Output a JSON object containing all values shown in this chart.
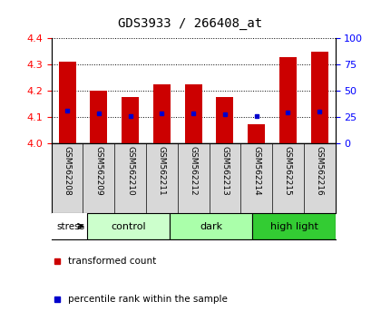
{
  "title": "GDS3933 / 266408_at",
  "samples": [
    "GSM562208",
    "GSM562209",
    "GSM562210",
    "GSM562211",
    "GSM562212",
    "GSM562213",
    "GSM562214",
    "GSM562215",
    "GSM562216"
  ],
  "bar_tops": [
    4.31,
    4.2,
    4.175,
    4.225,
    4.225,
    4.175,
    4.07,
    4.33,
    4.35
  ],
  "bar_bottom": 4.0,
  "blue_dots": [
    4.125,
    4.113,
    4.103,
    4.113,
    4.113,
    4.108,
    4.102,
    4.115,
    4.12
  ],
  "ylim": [
    4.0,
    4.4
  ],
  "ylim_right": [
    0,
    100
  ],
  "yticks_left": [
    4.0,
    4.1,
    4.2,
    4.3,
    4.4
  ],
  "yticks_right": [
    0,
    25,
    50,
    75,
    100
  ],
  "groups": [
    {
      "label": "control",
      "start": 0,
      "end": 3,
      "color": "#ccffcc"
    },
    {
      "label": "dark",
      "start": 3,
      "end": 6,
      "color": "#aaffaa"
    },
    {
      "label": "high light",
      "start": 6,
      "end": 9,
      "color": "#33cc33"
    }
  ],
  "bar_color": "#cc0000",
  "dot_color": "#0000cc",
  "stress_label": "stress",
  "label_bg_color": "#d8d8d8",
  "plot_bg": "#ffffff",
  "bar_width": 0.55,
  "title_fontsize": 10
}
